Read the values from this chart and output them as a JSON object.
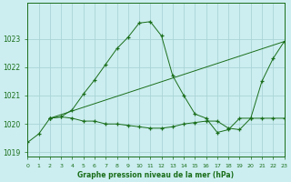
{
  "bg_color": "#cceef0",
  "grid_color": "#aad4d8",
  "line_color": "#1a6e1a",
  "marker_color": "#1a6e1a",
  "series1_x": [
    0,
    1,
    2,
    3,
    4,
    5,
    6,
    7,
    8,
    9,
    10,
    11,
    12,
    13,
    14,
    15,
    16,
    17,
    18,
    19,
    20,
    21,
    22,
    23
  ],
  "series1_y": [
    1019.35,
    1019.65,
    1020.2,
    1020.25,
    1020.5,
    1021.05,
    1021.55,
    1022.1,
    1022.65,
    1023.05,
    1023.55,
    1023.6,
    1023.1,
    1021.7,
    1021.0,
    1020.35,
    1020.2,
    1019.7,
    1019.8,
    1020.2,
    1020.2,
    1021.5,
    1022.3,
    1022.9
  ],
  "series2_x": [
    2,
    3,
    4,
    5,
    6,
    7,
    8,
    9,
    10,
    11,
    12,
    13,
    14,
    15,
    16,
    17,
    18,
    19,
    20,
    21,
    22,
    23
  ],
  "series2_y": [
    1020.2,
    1020.25,
    1020.2,
    1020.1,
    1020.1,
    1020.0,
    1020.0,
    1019.95,
    1019.9,
    1019.85,
    1019.85,
    1019.9,
    1020.0,
    1020.05,
    1020.1,
    1020.1,
    1019.85,
    1019.8,
    1020.2,
    1020.2,
    1020.2,
    1020.2
  ],
  "series3_x": [
    2,
    23
  ],
  "series3_y": [
    1020.2,
    1022.9
  ],
  "xlim": [
    0,
    23
  ],
  "ylim": [
    1018.85,
    1024.25
  ],
  "yticks": [
    1019,
    1020,
    1021,
    1022,
    1023
  ],
  "xticks": [
    0,
    1,
    2,
    3,
    4,
    5,
    6,
    7,
    8,
    9,
    10,
    11,
    12,
    13,
    14,
    15,
    16,
    17,
    18,
    19,
    20,
    21,
    22,
    23
  ],
  "xlabel": "Graphe pression niveau de la mer (hPa)"
}
